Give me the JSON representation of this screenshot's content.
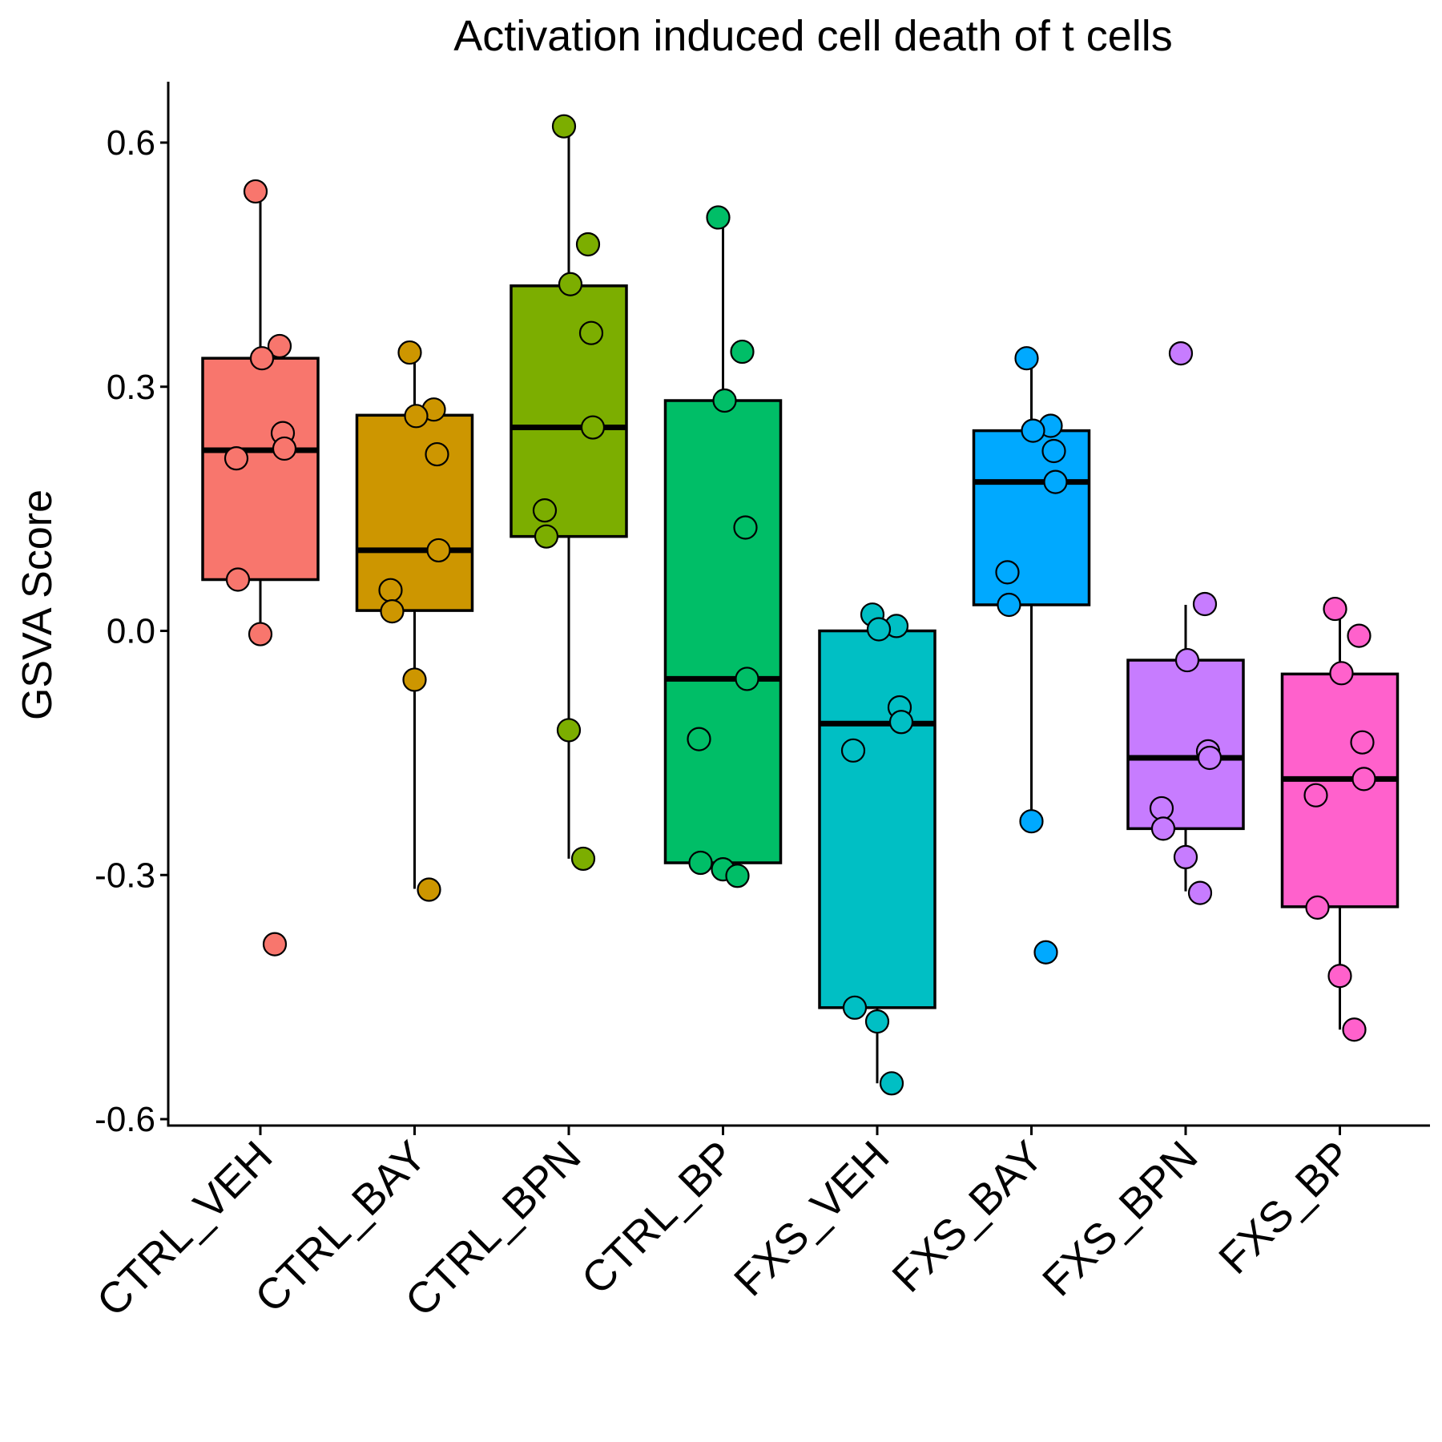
{
  "chart_data": {
    "type": "box",
    "title": "Activation induced cell death of t cells",
    "xlabel": "",
    "ylabel": "GSVA Score",
    "ylim": [
      -0.61,
      0.675
    ],
    "yticks": [
      0.6,
      0.3,
      0.0,
      -0.3,
      -0.6
    ],
    "ytick_labels": [
      "0.6",
      "0.3",
      "0.0",
      "-0.3",
      "-0.6"
    ],
    "categories": [
      "CTRL_VEH",
      "CTRL_BAY",
      "CTRL_BPN",
      "CTRL_BP",
      "FXS_VEH",
      "FXS_BAY",
      "FXS_BPN",
      "FXS_BP"
    ],
    "groups": [
      {
        "category": "CTRL_VEH",
        "color": "#F8766D",
        "q1": 0.063,
        "median": 0.222,
        "q3": 0.335,
        "whisker_low": -0.002,
        "whisker_high": 0.538,
        "points": [
          0.54,
          0.35,
          0.335,
          0.243,
          0.224,
          0.212,
          0.063,
          -0.004,
          -0.385
        ]
      },
      {
        "category": "CTRL_BAY",
        "color": "#CD9600",
        "q1": 0.025,
        "median": 0.099,
        "q3": 0.265,
        "whisker_low": -0.317,
        "whisker_high": 0.34,
        "points": [
          0.342,
          0.272,
          0.264,
          0.217,
          0.099,
          0.05,
          0.024,
          -0.06,
          -0.318
        ]
      },
      {
        "category": "CTRL_BPN",
        "color": "#7CAE00",
        "q1": 0.116,
        "median": 0.25,
        "q3": 0.424,
        "whisker_low": -0.28,
        "whisker_high": 0.62,
        "points": [
          0.62,
          0.475,
          0.426,
          0.366,
          0.25,
          0.148,
          0.116,
          -0.122,
          -0.28
        ]
      },
      {
        "category": "CTRL_BP",
        "color": "#00BE67",
        "q1": -0.285,
        "median": -0.059,
        "q3": 0.283,
        "whisker_low": -0.3,
        "whisker_high": 0.506,
        "points": [
          0.508,
          0.343,
          0.283,
          0.127,
          -0.059,
          -0.133,
          -0.285,
          -0.293,
          -0.301
        ]
      },
      {
        "category": "FXS_VEH",
        "color": "#00BFC4",
        "q1": -0.463,
        "median": -0.114,
        "q3": 0.0,
        "whisker_low": -0.556,
        "whisker_high": 0.0,
        "points": [
          0.02,
          0.006,
          0.002,
          -0.094,
          -0.112,
          -0.147,
          -0.463,
          -0.48,
          -0.556
        ]
      },
      {
        "category": "FXS_BAY",
        "color": "#00A9FF",
        "q1": 0.032,
        "median": 0.183,
        "q3": 0.246,
        "whisker_low": -0.233,
        "whisker_high": 0.333,
        "points": [
          0.335,
          0.252,
          0.246,
          0.221,
          0.183,
          0.072,
          0.032,
          -0.234,
          -0.395
        ]
      },
      {
        "category": "FXS_BPN",
        "color": "#C77CFF",
        "q1": -0.243,
        "median": -0.156,
        "q3": -0.036,
        "whisker_low": -0.32,
        "whisker_high": 0.032,
        "points": [
          0.341,
          0.033,
          -0.036,
          -0.148,
          -0.156,
          -0.218,
          -0.243,
          -0.278,
          -0.322
        ]
      },
      {
        "category": "FXS_BP",
        "color": "#FF61CC",
        "q1": -0.339,
        "median": -0.182,
        "q3": -0.053,
        "whisker_low": -0.49,
        "whisker_high": 0.025,
        "points": [
          0.027,
          -0.006,
          -0.052,
          -0.137,
          -0.182,
          -0.202,
          -0.34,
          -0.424,
          -0.49
        ]
      }
    ]
  }
}
